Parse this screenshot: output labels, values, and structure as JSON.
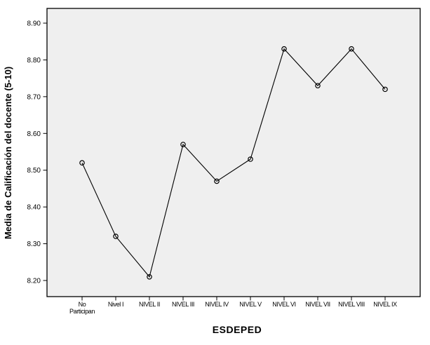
{
  "figure": {
    "background": "#ffffff"
  },
  "chart_data": {
    "type": "line",
    "title": "",
    "xlabel": "ESDEPED",
    "ylabel": "Media de Calificación del docente (5-10)",
    "categories": [
      "No\nParticipan",
      "Nivel I",
      "NIVEL II",
      "NIVEL III",
      "NIVEL IV",
      "NIVEL V",
      "NIVEL VI",
      "NIVEL VII",
      "NIVEL VIII",
      "NIVEL IX"
    ],
    "values": [
      8.52,
      8.32,
      8.21,
      8.57,
      8.47,
      8.53,
      8.83,
      8.73,
      8.83,
      8.72
    ],
    "yticks": [
      "8.20",
      "8.30",
      "8.40",
      "8.50",
      "8.60",
      "8.70",
      "8.80",
      "8.90"
    ],
    "ylim": [
      8.156,
      8.94
    ],
    "grid": false,
    "legend": null,
    "marker": "open-circle",
    "series_name": "Media de Calificación del docente",
    "colors": {
      "line": "#000000",
      "marker_stroke": "#000000",
      "plot_background": "#efefef",
      "frame": "#000000",
      "text": "#000000",
      "page_background": "#ffffff"
    }
  }
}
